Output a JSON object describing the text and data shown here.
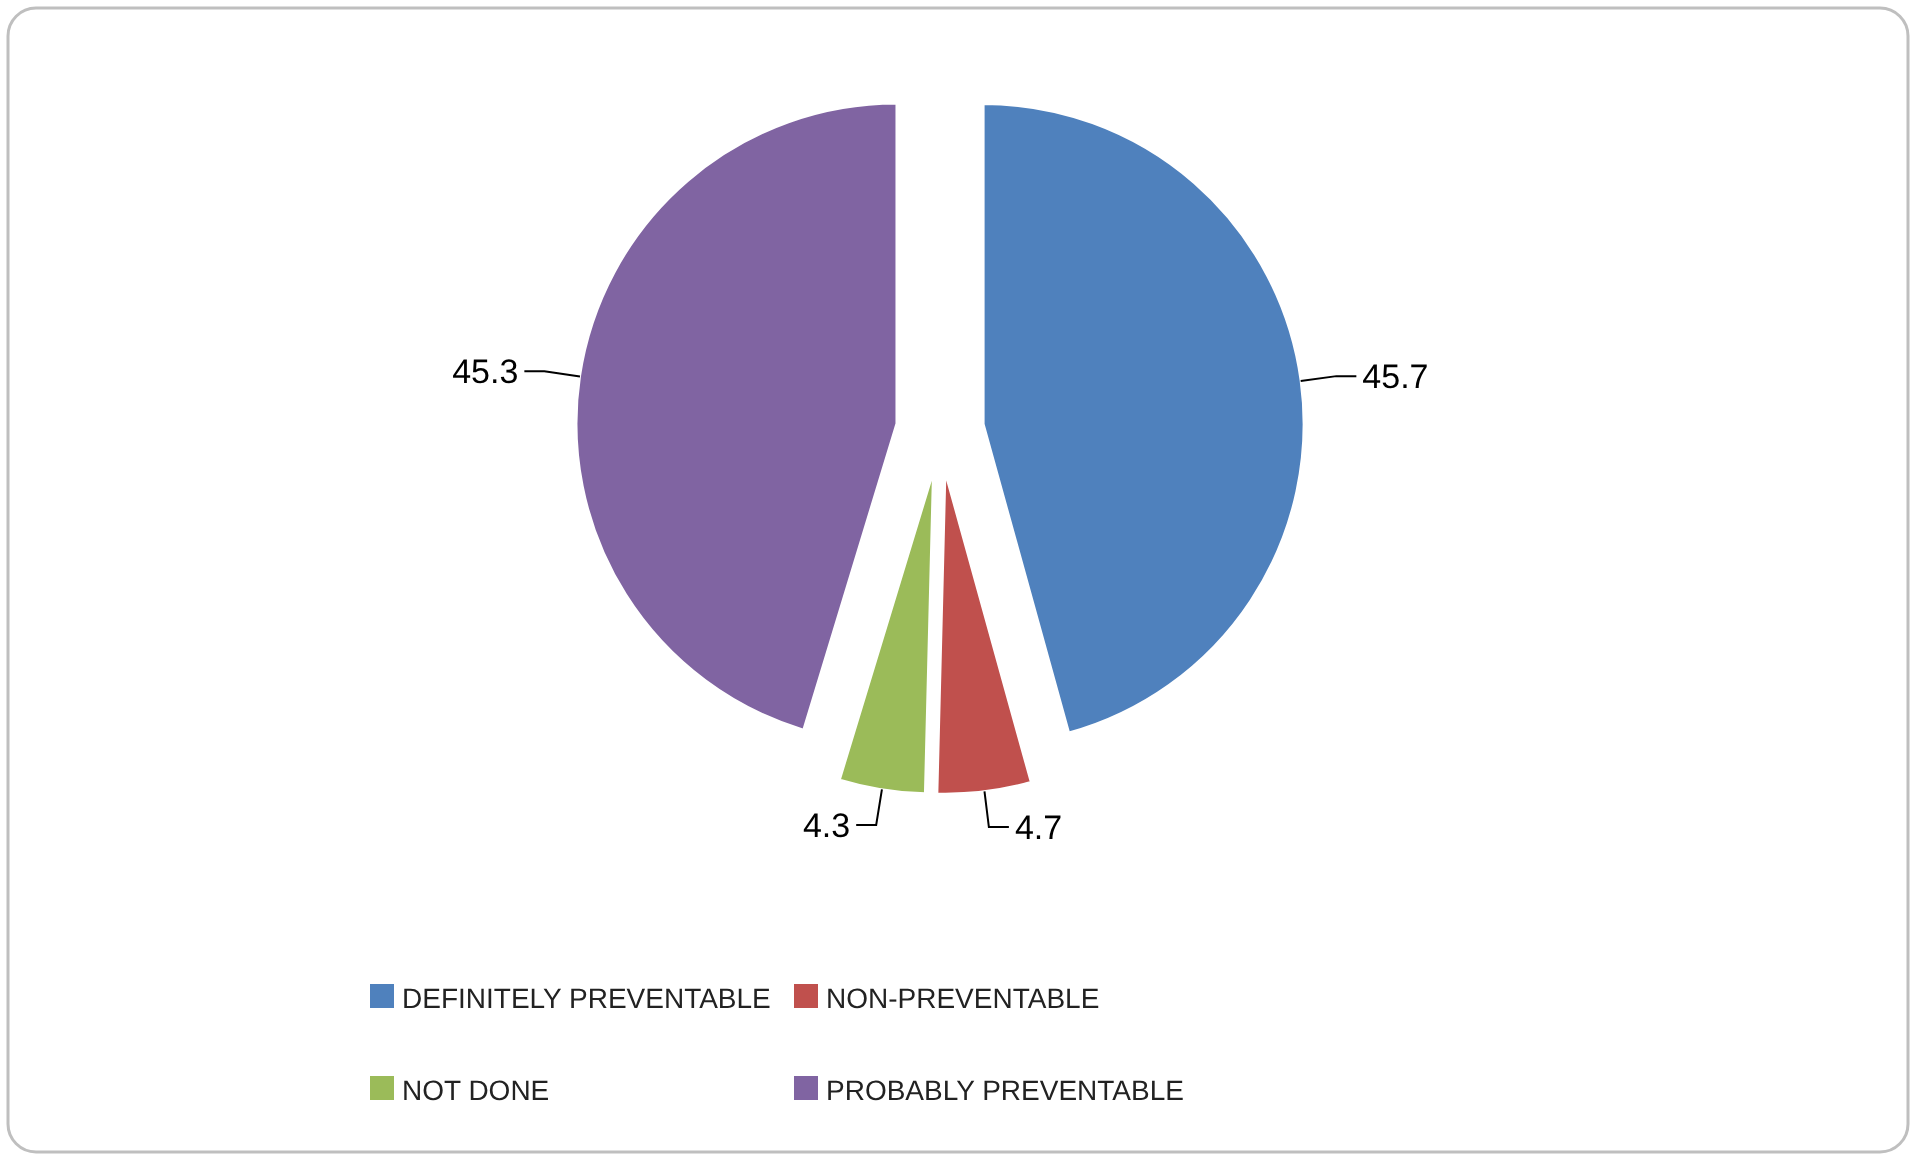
{
  "chart_data": {
    "type": "pie",
    "categories": [
      "DEFINITELY PREVENTABLE",
      "NON-PREVENTABLE",
      "NOT DONE",
      "PROBABLY PREVENTABLE"
    ],
    "values": [
      45.7,
      4.7,
      4.3,
      45.3
    ],
    "colors": [
      "#4f81bd",
      "#c0504d",
      "#9bbb59",
      "#8064a2"
    ],
    "data_labels": true,
    "legend": "bottom"
  }
}
